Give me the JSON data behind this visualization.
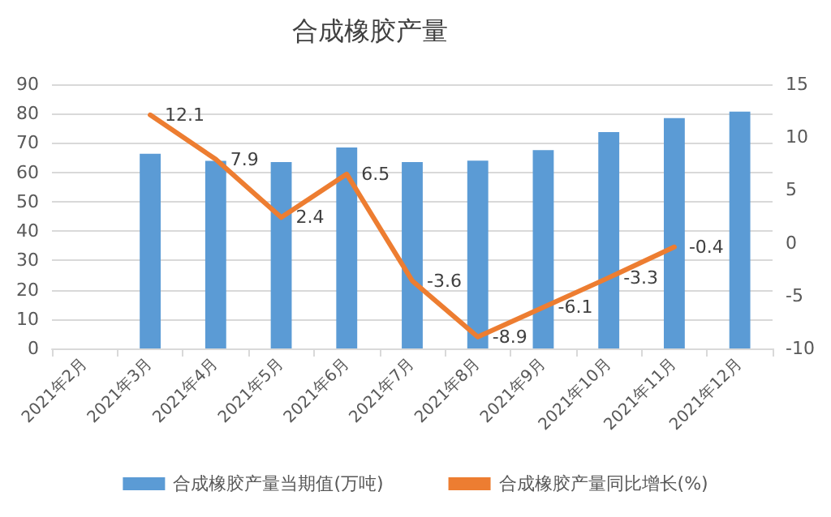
{
  "chart_data": {
    "type": "bar",
    "title": "合成橡胶产量",
    "categories": [
      "2021年2月",
      "2021年3月",
      "2021年4月",
      "2021年5月",
      "2021年6月",
      "2021年7月",
      "2021年8月",
      "2021年9月",
      "2021年10月",
      "2021年11月",
      "2021年12月"
    ],
    "series": [
      {
        "name": "合成橡胶产量当期值(万吨)",
        "color": "#5b9bd5",
        "values": [
          null,
          66.3,
          63.9,
          63.5,
          68.5,
          63.5,
          64,
          67.6,
          73.7,
          78.5,
          80.7
        ]
      },
      {
        "name": "合成橡胶产量同比增长(%)",
        "type": "line",
        "axis": "y2",
        "color": "#ed7d31",
        "values": [
          null,
          12.1,
          7.9,
          2.4,
          6.5,
          -3.6,
          -8.9,
          -6.1,
          -3.3,
          -0.4,
          null
        ],
        "value_labels": [
          null,
          "12.1",
          "7.9",
          "2.4",
          "6.5",
          "-3.6",
          "-8.9",
          "-6.1",
          "-3.3",
          "-0.4",
          null
        ]
      }
    ],
    "ylim": [
      0,
      90
    ],
    "yticks": [
      0,
      10,
      20,
      30,
      40,
      50,
      60,
      70,
      80,
      90
    ],
    "y2lim": [
      -10,
      15
    ],
    "y2ticks": [
      -10,
      -5,
      0,
      5,
      10,
      15
    ],
    "grid": "y",
    "legend": "bottom",
    "marker": "none",
    "line_style": "solid"
  }
}
